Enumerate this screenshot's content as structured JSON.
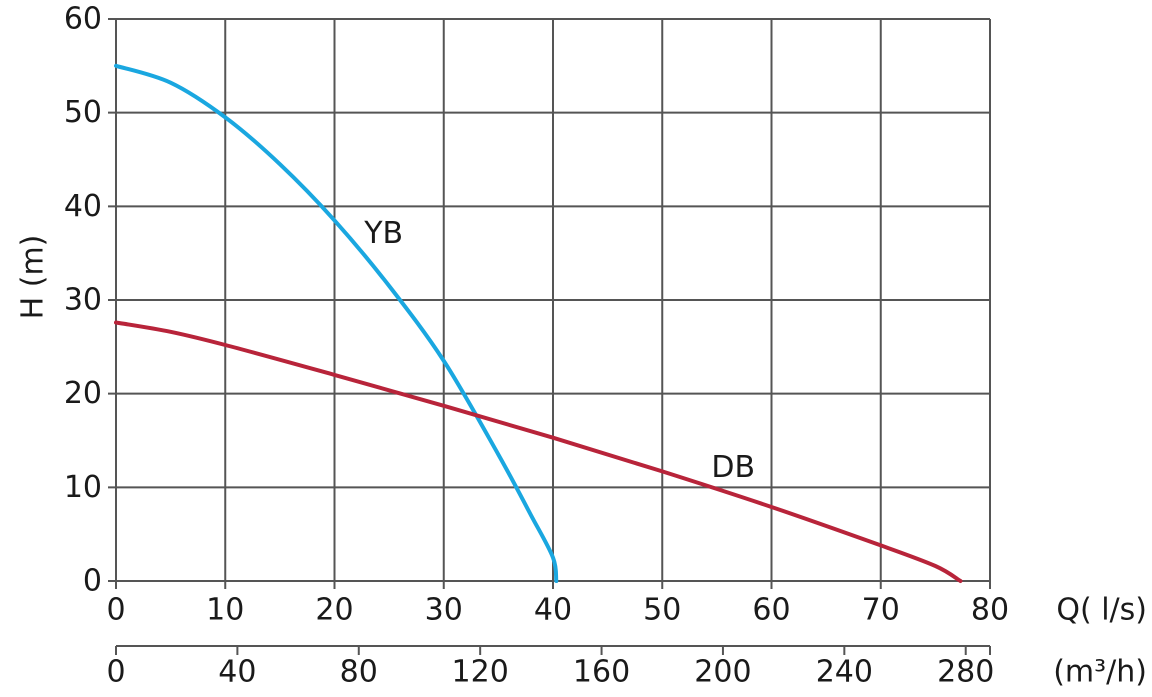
{
  "chart_data": {
    "type": "line",
    "title": "",
    "xlabel": "Q( l/s)",
    "ylabel": "H (m)",
    "secondary_xlabel": "(m³/h)",
    "xlim": [
      0,
      80
    ],
    "ylim": [
      0,
      60
    ],
    "grid": true,
    "x_ticks": [
      "0",
      "10",
      "20",
      "30",
      "40",
      "50",
      "60",
      "70",
      "80"
    ],
    "y_ticks": [
      "0",
      "10",
      "20",
      "30",
      "40",
      "50",
      "60"
    ],
    "secondary_x_ticks": [
      "0",
      "40",
      "80",
      "120",
      "160",
      "200",
      "240",
      "280"
    ],
    "secondary_x_max": 288,
    "series": [
      {
        "name": "YB",
        "color": "#1aa7e0",
        "x": [
          0,
          5,
          10,
          15,
          20,
          25,
          30,
          35,
          38,
          40,
          40.3
        ],
        "y": [
          55,
          53.2,
          49.5,
          44.5,
          38.5,
          31.5,
          23.5,
          13.5,
          7,
          2.5,
          0
        ]
      },
      {
        "name": "DB",
        "color": "#b8243a",
        "x": [
          0,
          5,
          10,
          20,
          30,
          40,
          50,
          60,
          70,
          75,
          77.3
        ],
        "y": [
          27.6,
          26.6,
          25.2,
          22,
          18.7,
          15.3,
          11.7,
          7.9,
          3.8,
          1.6,
          0
        ]
      }
    ],
    "label_positions": {
      "YB": {
        "x": 24.5,
        "y": 37
      },
      "DB": {
        "x": 56.5,
        "y": 12
      }
    }
  }
}
